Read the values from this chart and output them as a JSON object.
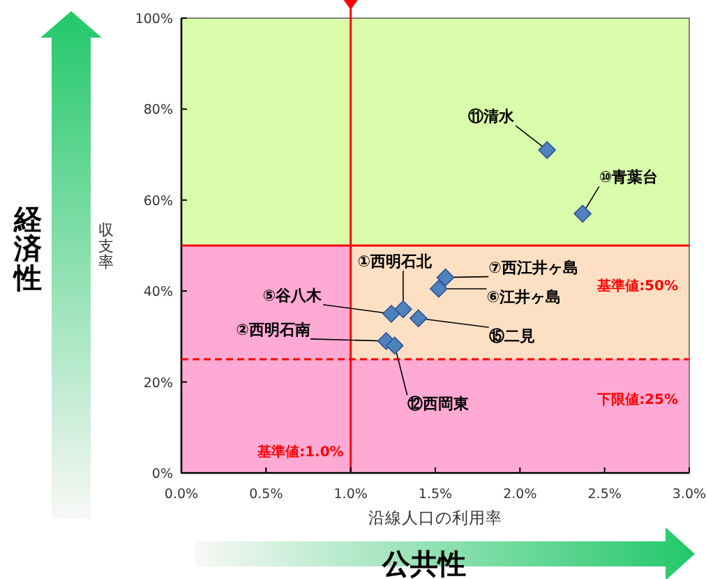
{
  "chart_data": {
    "type": "scatter",
    "xlabel": "沿線人口の利用率",
    "ylabel": "収支率",
    "x": [
      2.16,
      2.37,
      1.56,
      1.52,
      1.31,
      1.24,
      1.4,
      1.21,
      1.26
    ],
    "series": [
      {
        "color": "#4f81bd",
        "values": [
          71,
          57,
          43,
          40.5,
          36,
          35,
          34,
          29,
          28
        ]
      }
    ],
    "marker": "diamond",
    "xlim": [
      0,
      3
    ],
    "ylim": [
      0,
      100
    ],
    "xticks": [
      {
        "value": 0,
        "label": "0.0%"
      },
      {
        "value": 0.5,
        "label": "0.5%"
      },
      {
        "value": 1,
        "label": "1.0%"
      },
      {
        "value": 1.5,
        "label": "1.5%"
      },
      {
        "value": 2,
        "label": "2.0%"
      },
      {
        "value": 2.5,
        "label": "2.5%"
      },
      {
        "value": 3,
        "label": "3.0%"
      }
    ],
    "yticks": [
      {
        "value": 0,
        "label": "0%"
      },
      {
        "value": 20,
        "label": "20%"
      },
      {
        "value": 40,
        "label": "40%"
      },
      {
        "value": 60,
        "label": "60%"
      },
      {
        "value": 80,
        "label": "80%"
      },
      {
        "value": 100,
        "label": "100%"
      }
    ],
    "bands": [
      {
        "axis": "y",
        "from": 0,
        "to": 50,
        "color": "#ffaad5"
      },
      {
        "axis": "y",
        "from": 50,
        "to": 100,
        "color": "#d9fcab"
      },
      {
        "axis": "y",
        "from": 25,
        "to": 50,
        "color": "#fde0c3"
      }
    ],
    "ref_lines": [
      {
        "axis": "y",
        "value": 50,
        "label": "基準値:50%",
        "color": "#ff0000",
        "line_style": "solid"
      },
      {
        "axis": "y",
        "value": 25,
        "label": "下限値:25%",
        "color": "#ff0000",
        "line_style": "dashed"
      },
      {
        "axis": "x",
        "value": 1,
        "label": "基準値:1.0%",
        "color": "#ff0000",
        "line_style": "solid"
      }
    ],
    "annotations": [
      {
        "text": "⑪清水",
        "x": 2.16,
        "y": 71
      },
      {
        "text": "⑩青葉台",
        "x": 2.37,
        "y": 57
      },
      {
        "text": "⑦西江井ヶ島",
        "x": 1.56,
        "y": 43
      },
      {
        "text": "⑥江井ヶ島",
        "x": 1.52,
        "y": 40.5
      },
      {
        "text": "①西明石北",
        "x": 1.31,
        "y": 36
      },
      {
        "text": "⑤谷八木",
        "x": 1.24,
        "y": 35
      },
      {
        "text": "⑮二見",
        "x": 1.4,
        "y": 34
      },
      {
        "text": "②西明石南",
        "x": 1.21,
        "y": 29
      },
      {
        "text": "⑫西岡東",
        "x": 1.26,
        "y": 28
      },
      "経済性",
      "公共性"
    ]
  }
}
